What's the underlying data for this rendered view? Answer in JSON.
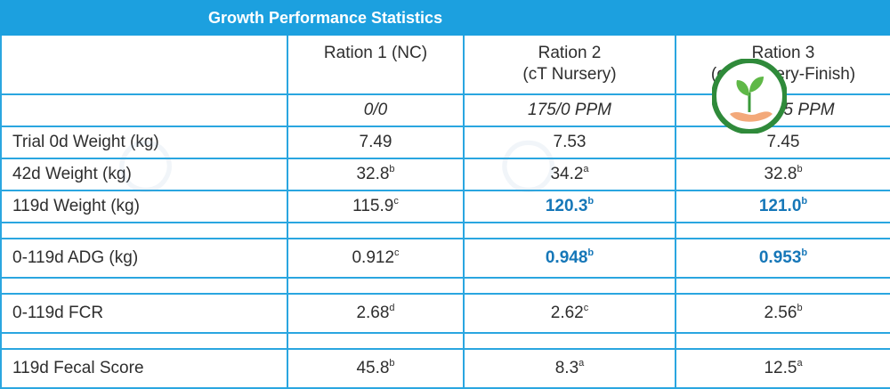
{
  "title": "Growth Performance Statistics",
  "columns": [
    {
      "line1": "Ration 1 (NC)",
      "line2": "",
      "dose": "0/0"
    },
    {
      "line1": "Ration 2",
      "line2": "(cT Nursery)",
      "dose": "175/0 PPM"
    },
    {
      "line1": "Ration 3",
      "line2": "(cT Nursery-Finish)",
      "dose": "175/175 PPM"
    }
  ],
  "rows": [
    {
      "label": "Trial 0d Weight (kg)",
      "cells": [
        {
          "v": "7.49",
          "s": ""
        },
        {
          "v": "7.53",
          "s": ""
        },
        {
          "v": "7.45",
          "s": ""
        }
      ]
    },
    {
      "label": "42d Weight (kg)",
      "cells": [
        {
          "v": "32.8",
          "s": "b"
        },
        {
          "v": "34.2",
          "s": "a"
        },
        {
          "v": "32.8",
          "s": "b"
        }
      ]
    },
    {
      "label": "119d Weight (kg)",
      "cells": [
        {
          "v": "115.9",
          "s": "c"
        },
        {
          "v": "120.3",
          "s": "b"
        },
        {
          "v": "121.0",
          "s": "b"
        }
      ]
    },
    {
      "label": "0-119d ADG (kg)",
      "cells": [
        {
          "v": "0.912",
          "s": "c"
        },
        {
          "v": "0.948",
          "s": "b"
        },
        {
          "v": "0.953",
          "s": "b"
        }
      ]
    },
    {
      "label": "0-119d FCR",
      "cells": [
        {
          "v": "2.68",
          "s": "d"
        },
        {
          "v": "2.62",
          "s": "c"
        },
        {
          "v": "2.56",
          "s": "b"
        }
      ]
    },
    {
      "label": "119d Fecal Score",
      "cells": [
        {
          "v": "45.8",
          "s": "b"
        },
        {
          "v": "8.3",
          "s": "a"
        },
        {
          "v": "12.5",
          "s": "a"
        }
      ]
    }
  ],
  "colors": {
    "header_bg": "#1ca0df",
    "border": "#2aa6e0",
    "highlight": "#1677b8"
  }
}
